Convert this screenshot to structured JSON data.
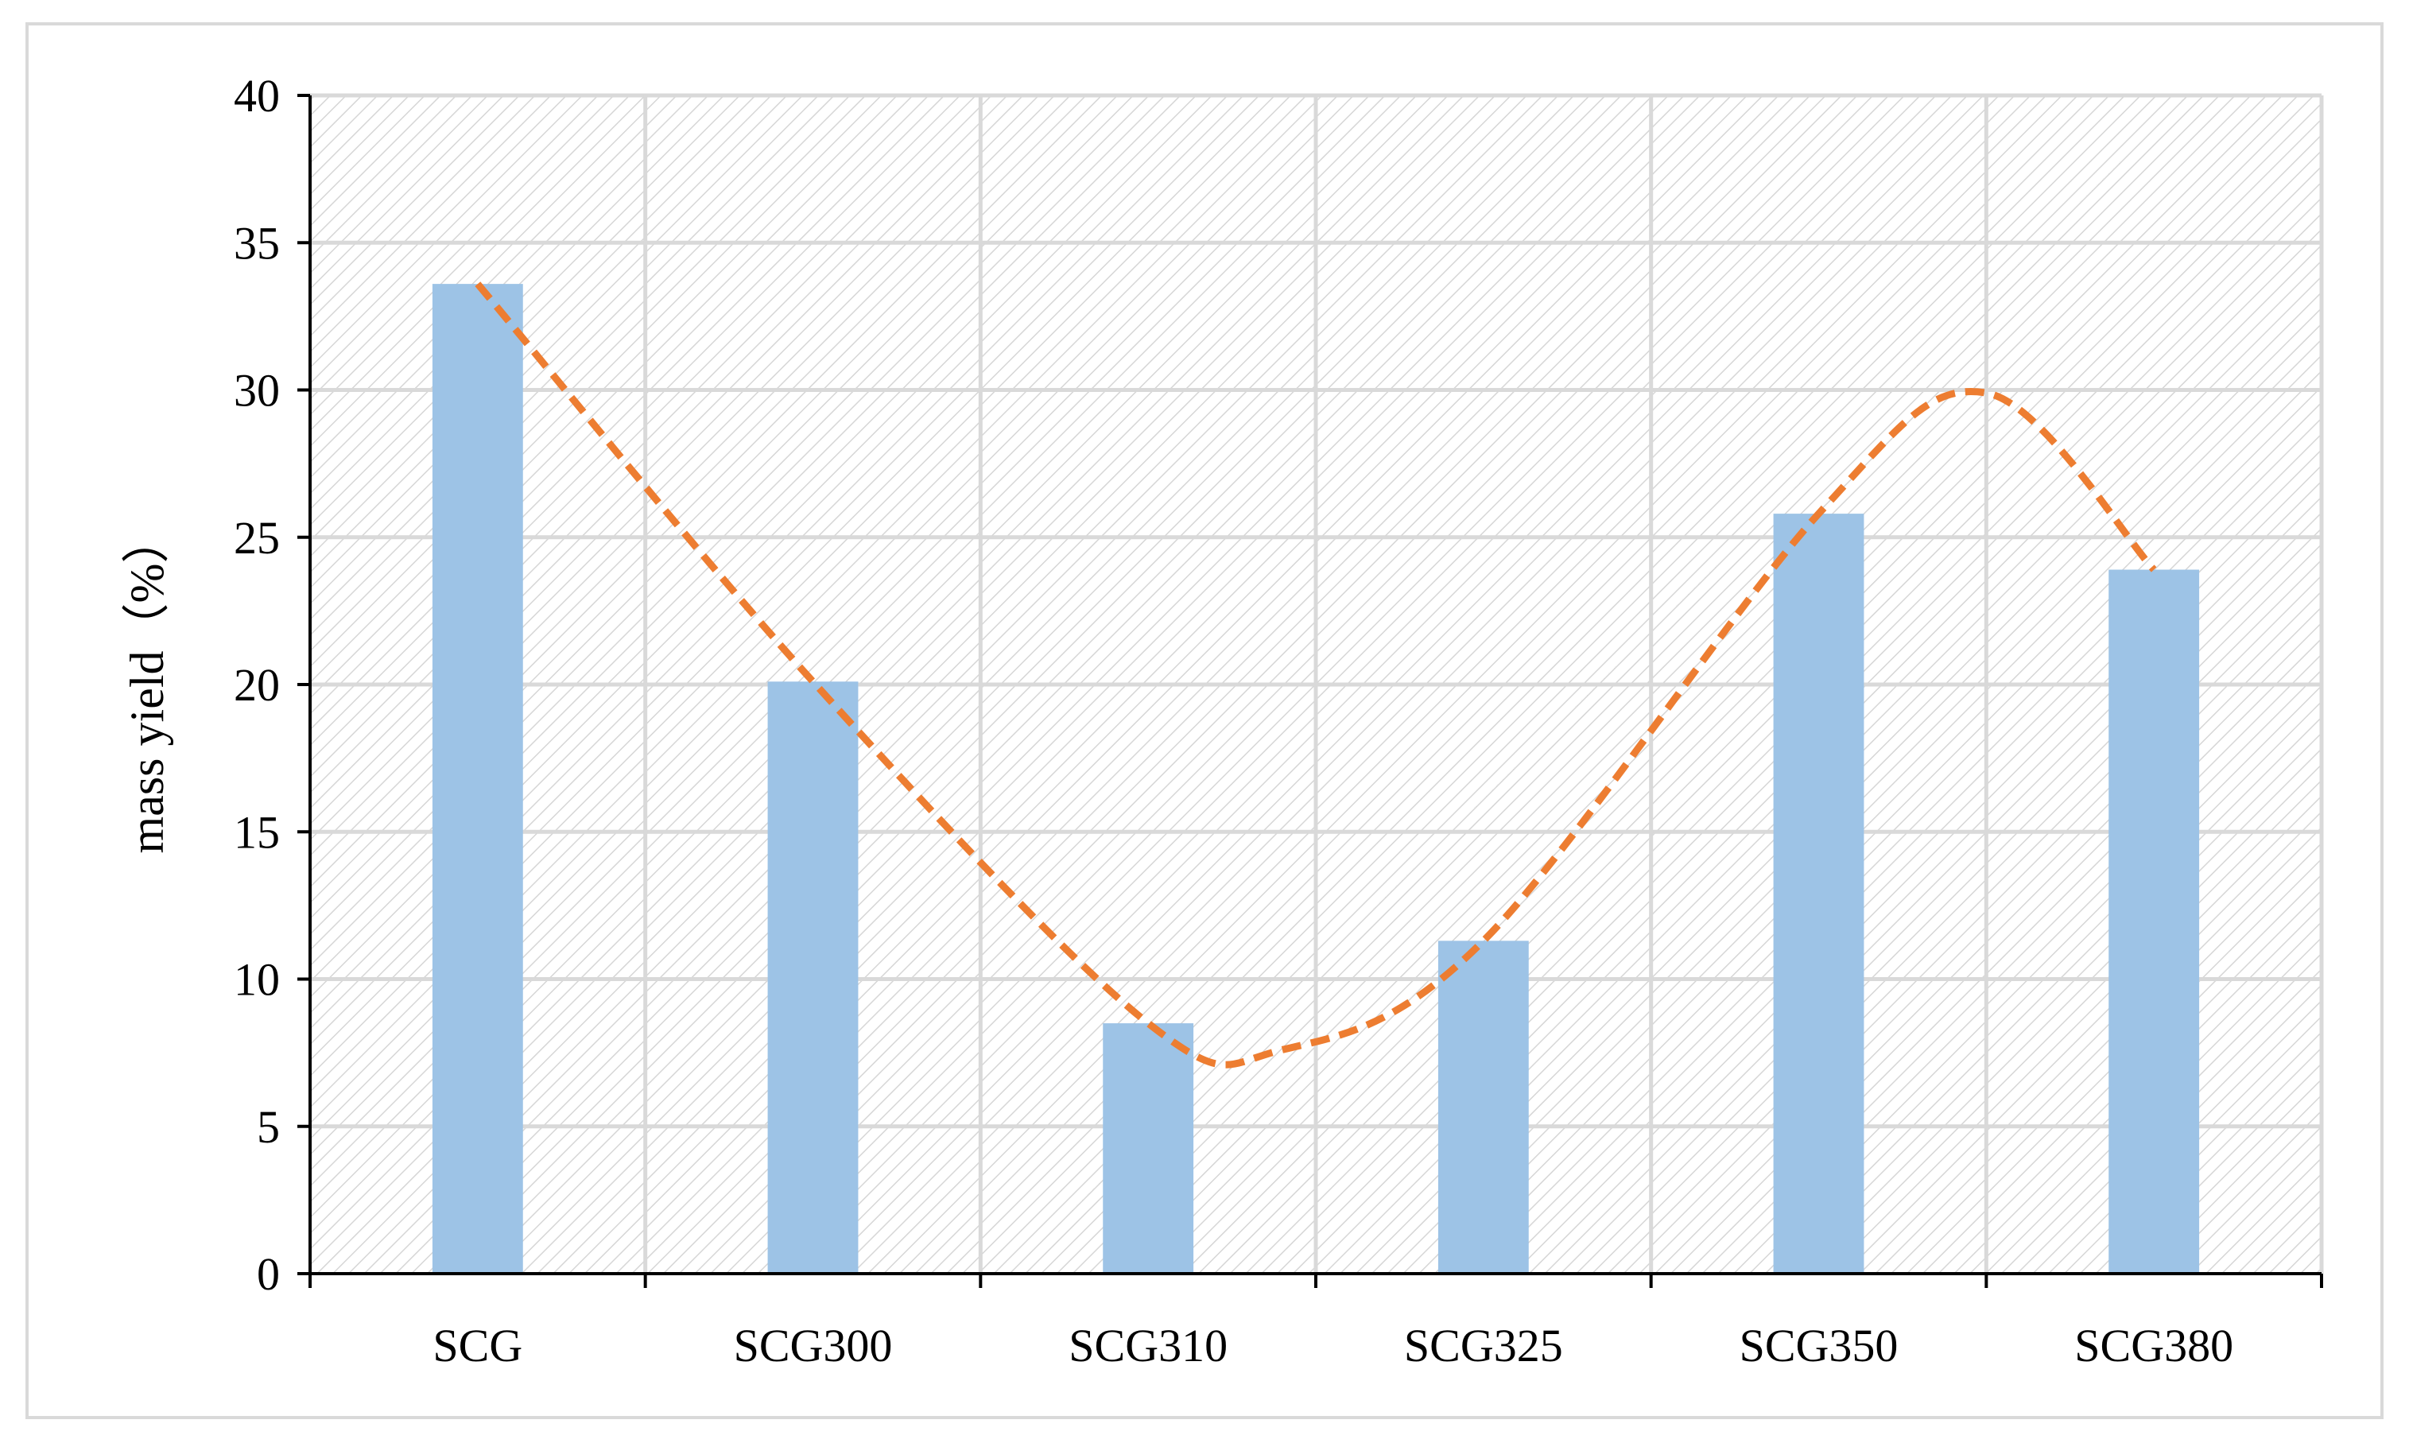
{
  "chart_data": {
    "type": "bar",
    "title": "",
    "xlabel": "",
    "ylabel": "mass yield（%）",
    "categories": [
      "SCG",
      "SCG300",
      "SCG310",
      "SCG325",
      "SCG350",
      "SCG380"
    ],
    "values": [
      33.6,
      20.1,
      8.5,
      11.3,
      25.8,
      23.9
    ],
    "ylim": [
      0,
      40
    ],
    "yticks": [
      0,
      5,
      10,
      15,
      20,
      25,
      30,
      35,
      40
    ],
    "grid": true,
    "legend": "none",
    "trendline": {
      "style": "dashed smooth curve",
      "points": [
        [
          0,
          33.6
        ],
        [
          1,
          20.1
        ],
        [
          2,
          8.5
        ],
        [
          2.4,
          7.6
        ],
        [
          3,
          11.3
        ],
        [
          4,
          25.8
        ],
        [
          4.5,
          29.9
        ],
        [
          5,
          23.9
        ]
      ]
    },
    "colors": {
      "bar": "#9dc3e6",
      "trendline": "#ed7d31",
      "grid": "#d9d9d9",
      "plot_background_hatch": "#d6d6d6",
      "axis": "#000000"
    }
  }
}
